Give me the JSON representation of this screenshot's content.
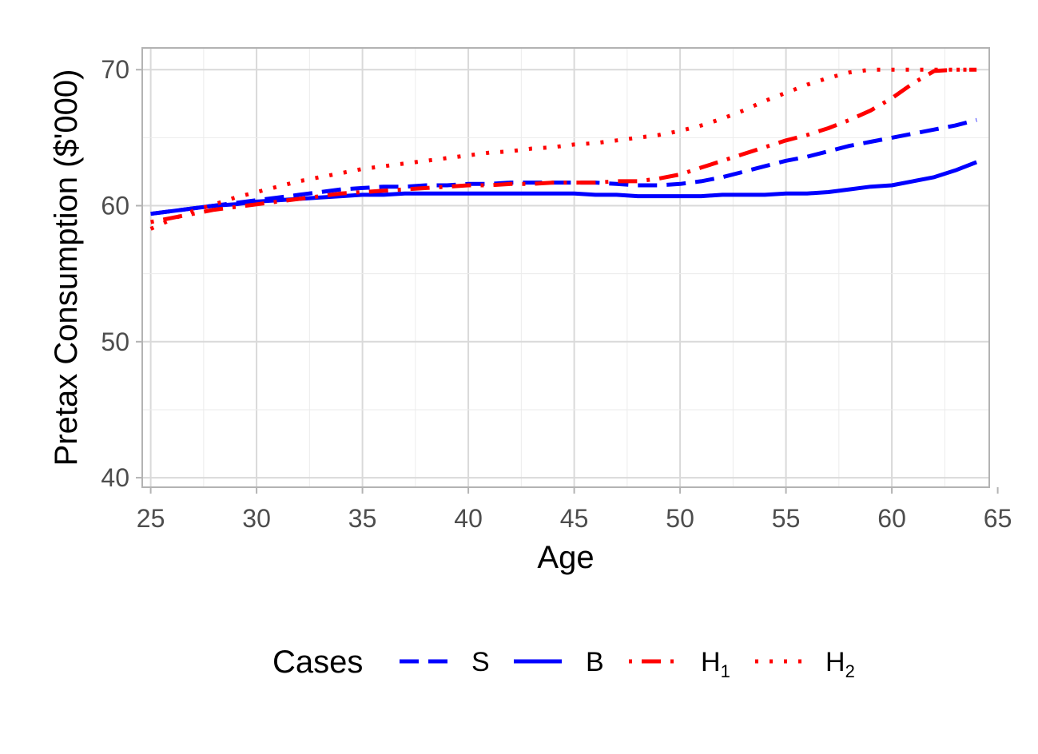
{
  "chart_data": {
    "type": "line",
    "xlabel": "Age",
    "ylabel": "Pretax Consumption ($'000)",
    "xlim": [
      24.6,
      64.6
    ],
    "ylim": [
      39.3,
      71.6
    ],
    "xticks": [
      25,
      30,
      35,
      40,
      45,
      50,
      55,
      60,
      65
    ],
    "yticks": [
      40,
      50,
      60,
      70
    ],
    "grid": true,
    "legend_position": "bottom",
    "legend_title": "Cases",
    "series": [
      {
        "name": "S",
        "name_main": "S",
        "name_sub": "",
        "color": "#0000FF",
        "dash": "dashed",
        "x": [
          25,
          26,
          27,
          28,
          29,
          30,
          31,
          32,
          33,
          34,
          35,
          36,
          37,
          38,
          39,
          40,
          41,
          42,
          43,
          44,
          45,
          46,
          47,
          48,
          49,
          50,
          51,
          52,
          53,
          54,
          55,
          56,
          57,
          58,
          59,
          60,
          61,
          62,
          63,
          64
        ],
        "y": [
          59.4,
          59.6,
          59.8,
          60.0,
          60.2,
          60.4,
          60.6,
          60.8,
          61.0,
          61.2,
          61.3,
          61.4,
          61.4,
          61.5,
          61.5,
          61.6,
          61.6,
          61.7,
          61.7,
          61.7,
          61.7,
          61.7,
          61.6,
          61.5,
          61.5,
          61.6,
          61.8,
          62.1,
          62.5,
          62.9,
          63.3,
          63.6,
          64.0,
          64.4,
          64.7,
          65.0,
          65.3,
          65.6,
          65.9,
          66.3
        ]
      },
      {
        "name": "B",
        "name_main": "B",
        "name_sub": "",
        "color": "#0000FF",
        "dash": "solid",
        "x": [
          25,
          26,
          27,
          28,
          29,
          30,
          31,
          32,
          33,
          34,
          35,
          36,
          37,
          38,
          39,
          40,
          41,
          42,
          43,
          44,
          45,
          46,
          47,
          48,
          49,
          50,
          51,
          52,
          53,
          54,
          55,
          56,
          57,
          58,
          59,
          60,
          61,
          62,
          63,
          64
        ],
        "y": [
          59.4,
          59.6,
          59.8,
          60.0,
          60.1,
          60.3,
          60.4,
          60.5,
          60.6,
          60.7,
          60.8,
          60.8,
          60.9,
          60.9,
          60.9,
          60.9,
          60.9,
          60.9,
          60.9,
          60.9,
          60.9,
          60.8,
          60.8,
          60.7,
          60.7,
          60.7,
          60.7,
          60.8,
          60.8,
          60.8,
          60.9,
          60.9,
          61.0,
          61.2,
          61.4,
          61.5,
          61.8,
          62.1,
          62.6,
          63.2
        ]
      },
      {
        "name": "H1",
        "name_main": "H",
        "name_sub": "1",
        "color": "#FF0000",
        "dash": "dotdash",
        "x": [
          25,
          26,
          27,
          28,
          29,
          30,
          31,
          32,
          33,
          34,
          35,
          36,
          37,
          38,
          39,
          40,
          41,
          42,
          43,
          44,
          45,
          46,
          47,
          48,
          49,
          50,
          51,
          52,
          53,
          54,
          55,
          56,
          57,
          58,
          59,
          60,
          61,
          62,
          63,
          64
        ],
        "y": [
          58.8,
          59.1,
          59.4,
          59.7,
          59.9,
          60.1,
          60.3,
          60.5,
          60.7,
          60.9,
          61.0,
          61.1,
          61.2,
          61.3,
          61.4,
          61.5,
          61.5,
          61.6,
          61.6,
          61.7,
          61.7,
          61.7,
          61.8,
          61.8,
          62.0,
          62.3,
          62.8,
          63.3,
          63.8,
          64.3,
          64.8,
          65.2,
          65.7,
          66.3,
          67.0,
          67.9,
          69.0,
          69.9,
          70.0,
          70.0
        ]
      },
      {
        "name": "H2",
        "name_main": "H",
        "name_sub": "2",
        "color": "#FF0000",
        "dash": "dotted",
        "x": [
          25,
          26,
          27,
          28,
          29,
          30,
          31,
          32,
          33,
          34,
          35,
          36,
          37,
          38,
          39,
          40,
          41,
          42,
          43,
          44,
          45,
          46,
          47,
          48,
          49,
          50,
          51,
          52,
          53,
          54,
          55,
          56,
          57,
          58,
          59,
          60,
          61,
          62,
          63,
          64
        ],
        "y": [
          58.3,
          59.0,
          59.6,
          60.1,
          60.6,
          61.0,
          61.4,
          61.8,
          62.1,
          62.4,
          62.7,
          62.9,
          63.1,
          63.3,
          63.5,
          63.7,
          63.9,
          64.0,
          64.2,
          64.3,
          64.5,
          64.6,
          64.8,
          65.0,
          65.2,
          65.5,
          65.9,
          66.4,
          67.0,
          67.7,
          68.3,
          68.9,
          69.4,
          69.8,
          70.0,
          70.0,
          70.0,
          70.0,
          70.0,
          70.0
        ]
      }
    ]
  }
}
